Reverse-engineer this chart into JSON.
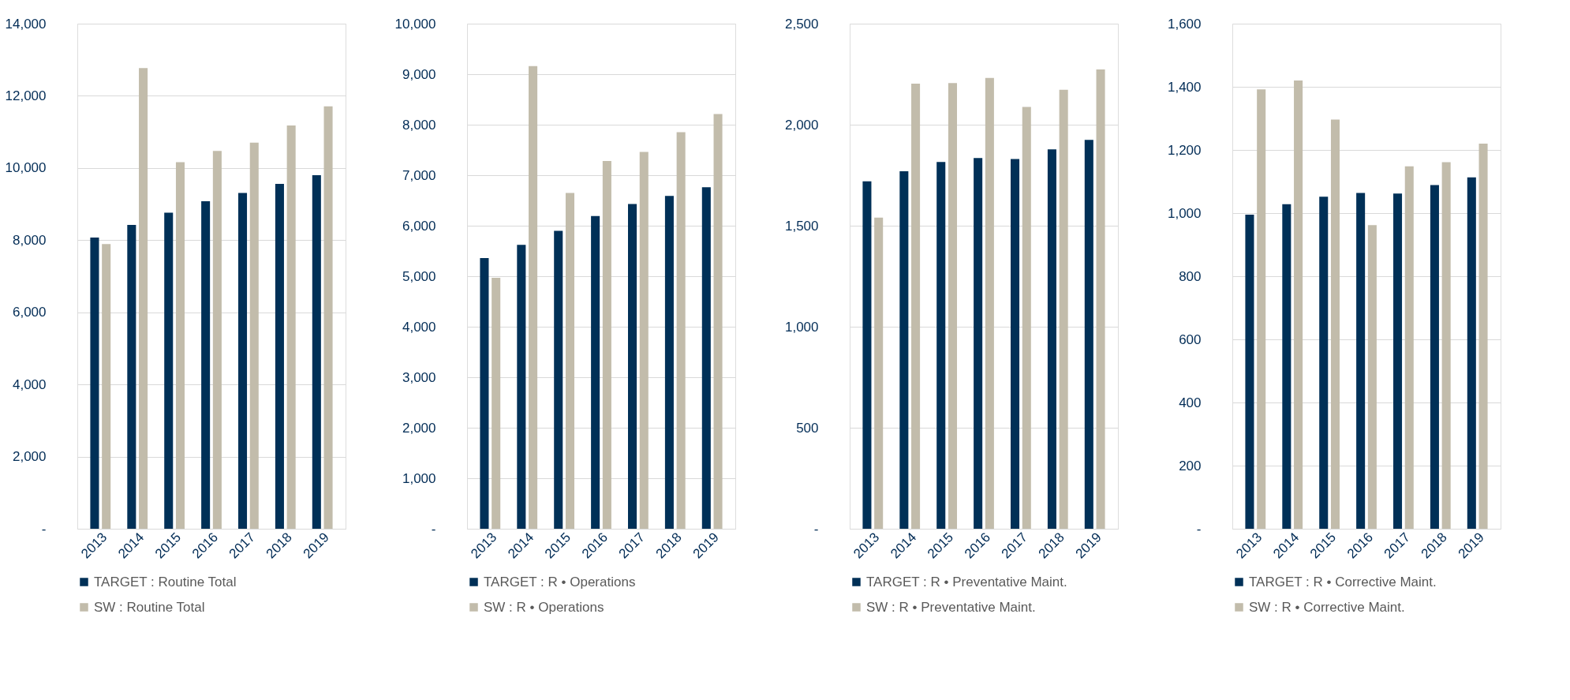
{
  "chart_data": [
    {
      "type": "bar",
      "categories": [
        "2013",
        "2014",
        "2015",
        "2016",
        "2017",
        "2018",
        "2019"
      ],
      "ylim": [
        0,
        14000
      ],
      "yticks": [
        {
          "value": 0,
          "label": "-"
        },
        {
          "value": 2000,
          "label": "2,000"
        },
        {
          "value": 4000,
          "label": "4,000"
        },
        {
          "value": 6000,
          "label": "6,000"
        },
        {
          "value": 8000,
          "label": "8,000"
        },
        {
          "value": 10000,
          "label": "10,000"
        },
        {
          "value": 12000,
          "label": "12,000"
        },
        {
          "value": 14000,
          "label": "14,000"
        }
      ],
      "grid": "y",
      "legend": "bottom",
      "series": [
        {
          "name": "TARGET : Routine Total",
          "color": "#003057",
          "values": [
            8070,
            8420,
            8760,
            9080,
            9310,
            9560,
            9800
          ]
        },
        {
          "name": "SW : Routine Total",
          "color": "#c2bcab",
          "values": [
            7890,
            12770,
            10160,
            10470,
            10700,
            11180,
            11710
          ]
        }
      ]
    },
    {
      "type": "bar",
      "categories": [
        "2013",
        "2014",
        "2015",
        "2016",
        "2017",
        "2018",
        "2019"
      ],
      "ylim": [
        0,
        10000
      ],
      "yticks": [
        {
          "value": 0,
          "label": "-"
        },
        {
          "value": 1000,
          "label": "1,000"
        },
        {
          "value": 2000,
          "label": "2,000"
        },
        {
          "value": 3000,
          "label": "3,000"
        },
        {
          "value": 4000,
          "label": "4,000"
        },
        {
          "value": 5000,
          "label": "5,000"
        },
        {
          "value": 6000,
          "label": "6,000"
        },
        {
          "value": 7000,
          "label": "7,000"
        },
        {
          "value": 8000,
          "label": "8,000"
        },
        {
          "value": 9000,
          "label": "9,000"
        },
        {
          "value": 10000,
          "label": "10,000"
        }
      ],
      "grid": "y",
      "legend": "bottom",
      "series": [
        {
          "name": "TARGET : R • Operations",
          "color": "#003057",
          "values": [
            5360,
            5620,
            5900,
            6190,
            6430,
            6590,
            6760
          ]
        },
        {
          "name": "SW : R • Operations",
          "color": "#c2bcab",
          "values": [
            4970,
            9160,
            6650,
            7280,
            7460,
            7850,
            8210
          ]
        }
      ]
    },
    {
      "type": "bar",
      "categories": [
        "2013",
        "2014",
        "2015",
        "2016",
        "2017",
        "2018",
        "2019"
      ],
      "ylim": [
        0,
        2500
      ],
      "yticks": [
        {
          "value": 0,
          "label": "-"
        },
        500,
        {
          "value": 1000,
          "label": "1,000"
        },
        {
          "value": 1500,
          "label": "1,500"
        },
        {
          "value": 2000,
          "label": "2,000"
        },
        {
          "value": 2500,
          "label": "2,500"
        }
      ],
      "grid": "y",
      "legend": "bottom",
      "series": [
        {
          "name": "TARGET : R • Preventative Maint.",
          "color": "#003057",
          "values": [
            1720,
            1770,
            1815,
            1835,
            1830,
            1878,
            1925
          ]
        },
        {
          "name": "SW : R • Preventative Maint.",
          "color": "#c2bcab",
          "values": [
            1540,
            2203,
            2206,
            2231,
            2088,
            2173,
            2273
          ]
        }
      ]
    },
    {
      "type": "bar",
      "categories": [
        "2013",
        "2014",
        "2015",
        "2016",
        "2017",
        "2018",
        "2019"
      ],
      "ylim": [
        0,
        1600
      ],
      "yticks": [
        {
          "value": 0,
          "label": "-"
        },
        200,
        400,
        600,
        800,
        {
          "value": 1000,
          "label": "1,000"
        },
        {
          "value": 1200,
          "label": "1,200"
        },
        {
          "value": 1400,
          "label": "1,400"
        },
        {
          "value": 1600,
          "label": "1,600"
        }
      ],
      "grid": "y",
      "legend": "bottom",
      "series": [
        {
          "name": "TARGET : R • Corrective Maint.",
          "color": "#003057",
          "values": [
            995,
            1028,
            1052,
            1064,
            1062,
            1089,
            1113
          ]
        },
        {
          "name": "SW : R • Corrective Maint.",
          "color": "#c2bcab",
          "values": [
            1392,
            1420,
            1296,
            962,
            1148,
            1161,
            1220
          ]
        }
      ]
    }
  ]
}
